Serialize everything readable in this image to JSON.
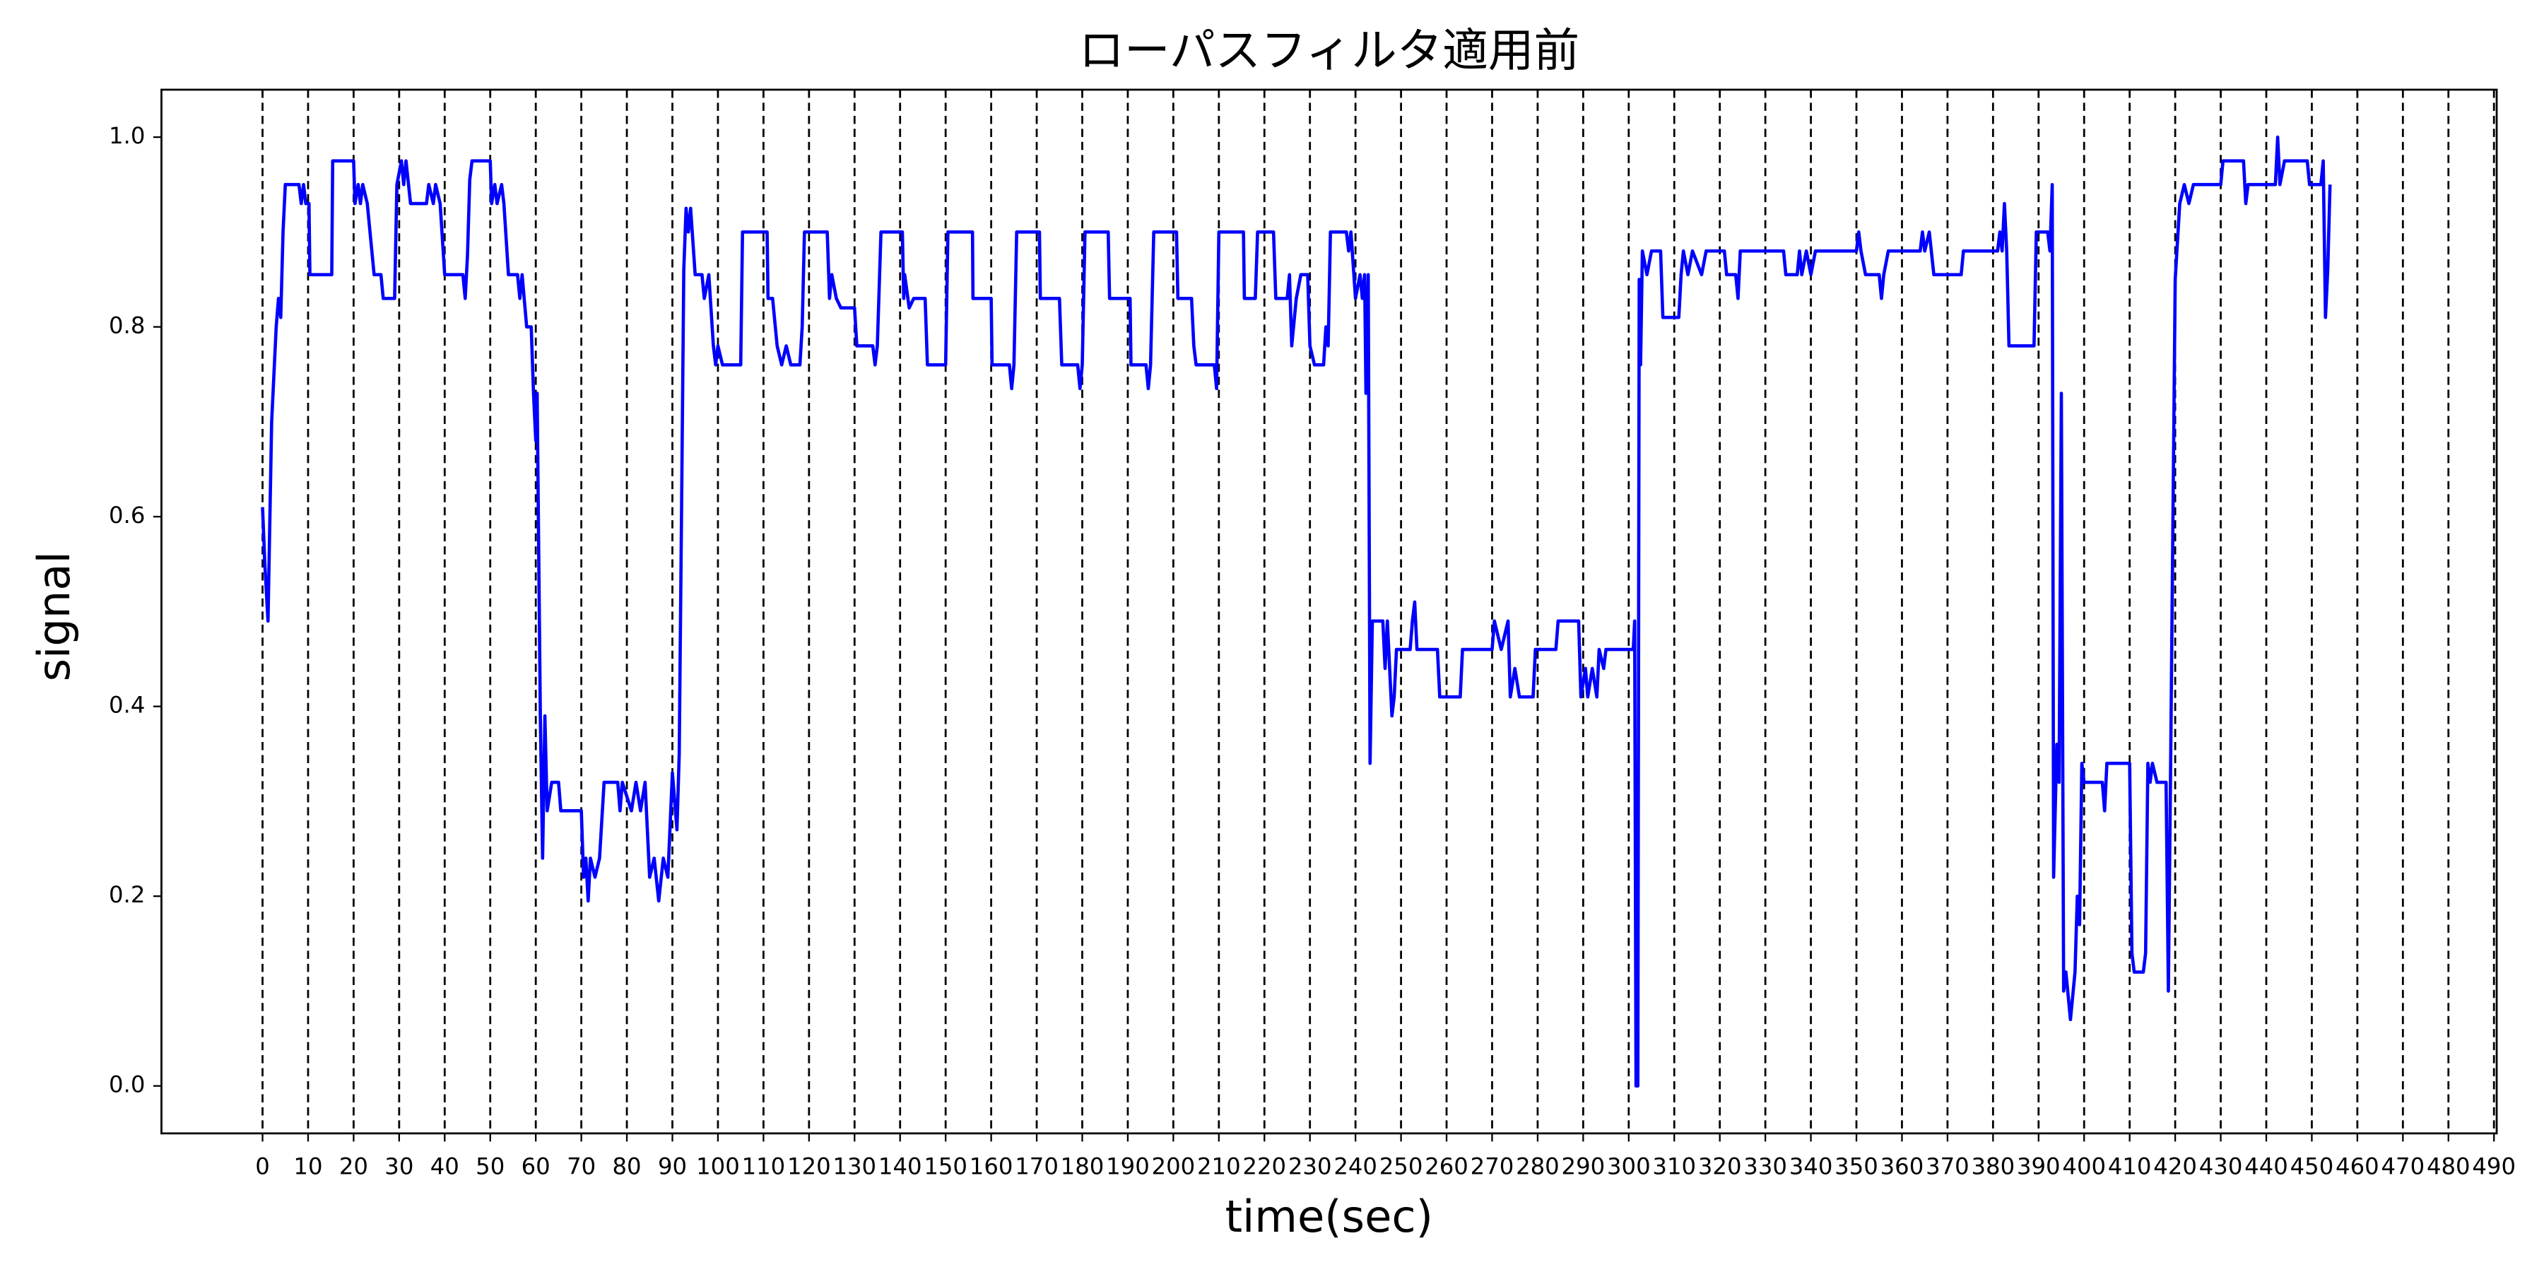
{
  "chart_data": {
    "type": "line",
    "title": "ローパスフィルタ適用前",
    "xlabel": "time(sec)",
    "ylabel": "signal",
    "xlim": [
      -22.2,
      490.6
    ],
    "ylim": [
      -0.05,
      1.05
    ],
    "xticks": [
      0,
      10,
      20,
      30,
      40,
      50,
      60,
      70,
      80,
      90,
      100,
      110,
      120,
      130,
      140,
      150,
      160,
      170,
      180,
      190,
      200,
      210,
      220,
      230,
      240,
      250,
      260,
      270,
      280,
      290,
      300,
      310,
      320,
      330,
      340,
      350,
      360,
      370,
      380,
      390,
      400,
      410,
      420,
      430,
      440,
      450,
      460,
      470,
      480,
      490
    ],
    "yticks": [
      {
        "value": 0,
        "label": "0.0"
      },
      0.2,
      0.4,
      0.6,
      0.8,
      {
        "value": 1,
        "label": "1.0"
      }
    ],
    "grid": "x-dashed",
    "x": [
      0,
      0.5,
      1.2,
      2,
      3,
      3.5,
      4,
      4.5,
      5,
      8,
      8.5,
      9,
      9.5,
      10.2,
      10.4,
      15.2,
      15.4,
      20,
      20.3,
      21,
      21.5,
      22,
      23,
      24.5,
      26,
      26.5,
      29,
      29.5,
      30.5,
      31,
      31.5,
      32.5,
      36,
      36.5,
      37.5,
      38,
      39,
      40,
      44,
      44.5,
      45,
      45.5,
      46,
      50,
      50.3,
      51,
      51.5,
      52.5,
      53,
      54,
      56,
      56.5,
      57,
      58,
      59,
      59.5,
      60,
      60.3,
      61,
      61.5,
      62,
      62.5,
      63.5,
      65,
      65.5,
      70,
      70.5,
      71,
      71.5,
      72,
      73,
      74,
      75,
      78,
      78.5,
      79,
      81,
      82,
      83,
      84,
      85,
      86,
      87,
      88,
      89,
      90,
      91,
      91.5,
      92,
      92.5,
      93,
      93.5,
      94,
      95,
      96.5,
      97,
      98,
      99,
      99.5,
      100,
      101,
      105,
      105.4,
      110.8,
      111,
      112,
      113,
      114,
      115,
      116,
      118,
      118.5,
      119,
      124,
      124.5,
      125,
      126,
      127,
      130,
      130.5,
      134,
      134.5,
      135,
      135.8,
      140.5,
      140.8,
      141,
      142,
      143,
      145.5,
      146,
      150,
      150.5,
      155.9,
      156,
      160,
      160.2,
      164,
      164.5,
      165,
      165.6,
      170.6,
      170.8,
      175,
      175.5,
      179,
      179.5,
      180,
      180.6,
      185.7,
      186,
      190.5,
      190.7,
      194,
      194.5,
      195,
      195.7,
      200.7,
      201,
      204,
      204.5,
      205,
      209,
      209.5,
      210,
      215.4,
      215.6,
      218,
      218.5,
      222,
      222.5,
      225,
      225.5,
      226,
      227,
      228,
      229.5,
      230,
      231,
      233,
      233.5,
      234,
      234.5,
      238,
      238.5,
      239,
      240,
      241,
      241.5,
      242,
      242.3,
      242.8,
      243.2,
      243.7,
      246,
      246.5,
      247,
      248,
      248.5,
      249,
      252,
      252.5,
      253,
      253.5,
      258,
      258.5,
      263,
      263.5,
      270,
      270.5,
      272,
      273.5,
      274,
      275,
      276,
      279,
      279.5,
      284,
      284.5,
      289,
      289.5,
      290.5,
      291,
      292,
      293,
      293.5,
      294.5,
      295,
      301,
      301.3,
      301.6,
      302,
      302.3,
      302.6,
      303,
      304,
      305,
      307,
      307.5,
      311,
      311.5,
      312,
      313,
      314,
      316,
      317,
      321,
      321.5,
      323.5,
      324,
      324.5,
      334,
      334.5,
      337,
      337.5,
      338,
      339,
      340,
      341,
      350,
      350.5,
      351,
      352,
      355,
      355.5,
      356,
      357,
      364,
      364.5,
      365,
      366,
      367,
      373,
      373.5,
      381,
      381.5,
      382,
      382.5,
      383,
      383.5,
      389,
      389.5,
      392,
      392.5,
      393,
      393.3,
      394,
      394.5,
      395,
      395.5,
      396,
      397,
      398,
      398.5,
      399,
      399.5,
      400,
      404,
      404.5,
      405,
      410,
      410.5,
      411,
      413,
      413.5,
      414,
      414.5,
      415,
      416,
      418,
      418.5,
      419,
      420,
      421,
      422,
      423,
      424,
      430,
      430.5,
      435,
      435.5,
      436,
      442,
      442.5,
      443,
      444,
      449,
      449.5,
      452,
      452.5,
      453,
      453.5,
      454
    ],
    "series": [
      {
        "color": "#0000ff",
        "values": [
          0.61,
          0.55,
          0.49,
          0.7,
          0.8,
          0.83,
          0.81,
          0.9,
          0.95,
          0.95,
          0.93,
          0.95,
          0.93,
          0.93,
          0.855,
          0.855,
          0.975,
          0.975,
          0.93,
          0.95,
          0.93,
          0.95,
          0.93,
          0.855,
          0.855,
          0.83,
          0.83,
          0.95,
          0.975,
          0.95,
          0.975,
          0.93,
          0.93,
          0.95,
          0.93,
          0.95,
          0.93,
          0.855,
          0.855,
          0.83,
          0.875,
          0.955,
          0.975,
          0.975,
          0.93,
          0.95,
          0.93,
          0.95,
          0.93,
          0.855,
          0.855,
          0.83,
          0.855,
          0.8,
          0.8,
          0.73,
          0.68,
          0.73,
          0.39,
          0.24,
          0.39,
          0.29,
          0.32,
          0.32,
          0.29,
          0.29,
          0.22,
          0.24,
          0.195,
          0.24,
          0.22,
          0.24,
          0.32,
          0.32,
          0.29,
          0.32,
          0.29,
          0.32,
          0.29,
          0.32,
          0.22,
          0.24,
          0.195,
          0.24,
          0.22,
          0.33,
          0.27,
          0.35,
          0.6,
          0.86,
          0.925,
          0.9,
          0.925,
          0.855,
          0.855,
          0.83,
          0.855,
          0.78,
          0.76,
          0.78,
          0.76,
          0.76,
          0.9,
          0.9,
          0.83,
          0.83,
          0.78,
          0.76,
          0.78,
          0.76,
          0.76,
          0.8,
          0.9,
          0.9,
          0.83,
          0.855,
          0.83,
          0.82,
          0.82,
          0.78,
          0.78,
          0.76,
          0.78,
          0.9,
          0.9,
          0.83,
          0.855,
          0.82,
          0.83,
          0.83,
          0.76,
          0.76,
          0.9,
          0.9,
          0.83,
          0.83,
          0.76,
          0.76,
          0.735,
          0.76,
          0.9,
          0.9,
          0.83,
          0.83,
          0.76,
          0.76,
          0.735,
          0.76,
          0.9,
          0.9,
          0.83,
          0.83,
          0.76,
          0.76,
          0.735,
          0.76,
          0.9,
          0.9,
          0.83,
          0.83,
          0.78,
          0.76,
          0.76,
          0.735,
          0.9,
          0.9,
          0.83,
          0.83,
          0.9,
          0.9,
          0.83,
          0.83,
          0.855,
          0.78,
          0.83,
          0.855,
          0.855,
          0.78,
          0.76,
          0.76,
          0.8,
          0.78,
          0.9,
          0.9,
          0.88,
          0.9,
          0.83,
          0.855,
          0.83,
          0.855,
          0.73,
          0.855,
          0.34,
          0.49,
          0.49,
          0.44,
          0.49,
          0.39,
          0.41,
          0.46,
          0.46,
          0.49,
          0.51,
          0.46,
          0.46,
          0.41,
          0.41,
          0.46,
          0.46,
          0.49,
          0.46,
          0.49,
          0.41,
          0.44,
          0.41,
          0.41,
          0.46,
          0.46,
          0.49,
          0.49,
          0.41,
          0.44,
          0.41,
          0.44,
          0.41,
          0.46,
          0.44,
          0.46,
          0.46,
          0.49,
          0.0,
          0.0,
          0.85,
          0.76,
          0.88,
          0.855,
          0.88,
          0.88,
          0.81,
          0.81,
          0.855,
          0.88,
          0.855,
          0.88,
          0.855,
          0.88,
          0.88,
          0.855,
          0.855,
          0.83,
          0.88,
          0.88,
          0.855,
          0.855,
          0.88,
          0.855,
          0.88,
          0.855,
          0.88,
          0.88,
          0.9,
          0.88,
          0.855,
          0.855,
          0.83,
          0.855,
          0.88,
          0.88,
          0.9,
          0.88,
          0.9,
          0.855,
          0.855,
          0.88,
          0.88,
          0.9,
          0.88,
          0.93,
          0.88,
          0.78,
          0.78,
          0.9,
          0.9,
          0.88,
          0.95,
          0.22,
          0.36,
          0.32,
          0.73,
          0.1,
          0.12,
          0.07,
          0.12,
          0.2,
          0.17,
          0.34,
          0.32,
          0.32,
          0.29,
          0.34,
          0.34,
          0.14,
          0.12,
          0.12,
          0.14,
          0.34,
          0.32,
          0.34,
          0.32,
          0.32,
          0.1,
          0.34,
          0.85,
          0.93,
          0.95,
          0.93,
          0.95,
          0.95,
          0.975,
          0.975,
          0.93,
          0.95,
          0.95,
          1.0,
          0.95,
          0.975,
          0.975,
          0.95,
          0.95,
          0.975,
          0.81,
          0.86,
          0.95
        ]
      }
    ]
  }
}
